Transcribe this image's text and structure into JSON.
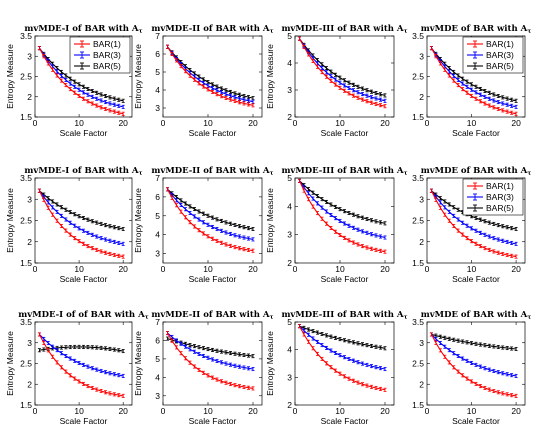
{
  "series_names": [
    "BAR(1)",
    "BAR(3)",
    "BAR(5)"
  ],
  "colors": [
    "#ff0000",
    "#0000ff",
    "#000000"
  ],
  "chart_data": [
    {
      "type": "line",
      "title": "mvMDE-I of BAR with A_{τ1}",
      "title_pre": "mvMDE-I of BAR with ",
      "title_sym": "A",
      "title_sub": "τ",
      "xlabel": "Scale Factor",
      "ylabel": "Entropy Measure",
      "xlim": [
        0,
        22
      ],
      "ylim": [
        1.5,
        3.5
      ],
      "xticks": [
        0,
        10,
        20
      ],
      "yticks": [
        1.5,
        2,
        2.5,
        3,
        3.5
      ],
      "legend": "top-right",
      "x_start": 1,
      "x_end": 20,
      "series": [
        {
          "name": "BAR(1)",
          "start": 3.2,
          "end": 1.58,
          "k": 2.2
        },
        {
          "name": "BAR(3)",
          "start": 3.2,
          "end": 1.75,
          "k": 2.0
        },
        {
          "name": "BAR(5)",
          "start": 3.2,
          "end": 1.9,
          "k": 1.8
        }
      ]
    },
    {
      "type": "line",
      "title": "mvMDE-II of BAR with A_{τ1}",
      "title_pre": "mvMDE-II of BAR with ",
      "title_sym": "A",
      "title_sub": "τ",
      "xlabel": "Scale Factor",
      "ylabel": "Entropy Measure",
      "xlim": [
        0,
        22
      ],
      "ylim": [
        2.5,
        7
      ],
      "xticks": [
        0,
        10,
        20
      ],
      "yticks": [
        3,
        4,
        5,
        6,
        7
      ],
      "legend": "none",
      "x_start": 1,
      "x_end": 20,
      "series": [
        {
          "name": "BAR(1)",
          "start": 6.4,
          "end": 3.15,
          "k": 2.2
        },
        {
          "name": "BAR(3)",
          "start": 6.4,
          "end": 3.35,
          "k": 2.0
        },
        {
          "name": "BAR(5)",
          "start": 6.4,
          "end": 3.55,
          "k": 1.8
        }
      ]
    },
    {
      "type": "line",
      "title": "mvMDE-III of BAR with A_{τ1}",
      "title_pre": "mvMDE-III of BAR with ",
      "title_sym": "A",
      "title_sub": "τ",
      "xlabel": "Scale Factor",
      "ylabel": "Entropy Measure",
      "xlim": [
        0,
        22
      ],
      "ylim": [
        2,
        5
      ],
      "xticks": [
        0,
        10,
        20
      ],
      "yticks": [
        2,
        3,
        4,
        5
      ],
      "legend": "none",
      "x_start": 1,
      "x_end": 20,
      "series": [
        {
          "name": "BAR(1)",
          "start": 4.9,
          "end": 2.4,
          "k": 2.2
        },
        {
          "name": "BAR(3)",
          "start": 4.9,
          "end": 2.6,
          "k": 2.0
        },
        {
          "name": "BAR(5)",
          "start": 4.9,
          "end": 2.8,
          "k": 1.8
        }
      ]
    },
    {
      "type": "line",
      "title": "mvMDE of BAR with A_{τ1}",
      "title_pre": "mvMDE of BAR with ",
      "title_sym": "A",
      "title_sub": "τ",
      "xlabel": "Scale Factor",
      "ylabel": "",
      "xlim": [
        0,
        22
      ],
      "ylim": [
        1.5,
        3.5
      ],
      "xticks": [
        0,
        10,
        20
      ],
      "yticks": [
        1.5,
        2,
        2.5,
        3,
        3.5
      ],
      "legend": "top-right",
      "x_start": 1,
      "x_end": 20,
      "series": [
        {
          "name": "BAR(1)",
          "start": 3.2,
          "end": 1.58,
          "k": 2.2
        },
        {
          "name": "BAR(3)",
          "start": 3.2,
          "end": 1.75,
          "k": 2.0
        },
        {
          "name": "BAR(5)",
          "start": 3.2,
          "end": 1.9,
          "k": 1.8
        }
      ]
    },
    {
      "type": "line",
      "title": "mvMDE-I of BAR with A_{τ2}",
      "title_pre": "mvMDE-I of BAR with ",
      "title_sym": "A",
      "title_sub": "τ",
      "xlabel": "Scale Factor",
      "ylabel": "Entropy Measure",
      "xlim": [
        0,
        22
      ],
      "ylim": [
        1.5,
        3.5
      ],
      "xticks": [
        0,
        10,
        20
      ],
      "yticks": [
        1.5,
        2,
        2.5,
        3,
        3.5
      ],
      "legend": "none",
      "x_start": 1,
      "x_end": 20,
      "series": [
        {
          "name": "BAR(1)",
          "start": 3.2,
          "end": 1.65,
          "k": 2.6
        },
        {
          "name": "BAR(3)",
          "start": 3.2,
          "end": 1.95,
          "k": 2.0
        },
        {
          "name": "BAR(5)",
          "start": 3.2,
          "end": 2.3,
          "k": 1.6
        }
      ]
    },
    {
      "type": "line",
      "title": "mvMDE-II of BAR with A_{τ2}",
      "title_pre": "mvMDE-II of BAR with ",
      "title_sym": "A",
      "title_sub": "τ",
      "xlabel": "Scale Factor",
      "ylabel": "Entropy Measure",
      "xlim": [
        0,
        22
      ],
      "ylim": [
        2.5,
        7
      ],
      "xticks": [
        0,
        10,
        20
      ],
      "yticks": [
        3,
        4,
        5,
        6,
        7
      ],
      "legend": "none",
      "x_start": 1,
      "x_end": 20,
      "series": [
        {
          "name": "BAR(1)",
          "start": 6.4,
          "end": 3.15,
          "k": 2.6
        },
        {
          "name": "BAR(3)",
          "start": 6.4,
          "end": 3.75,
          "k": 2.0
        },
        {
          "name": "BAR(5)",
          "start": 6.4,
          "end": 4.3,
          "k": 1.6
        }
      ]
    },
    {
      "type": "line",
      "title": "mvMDE-III of BAR with A_{τ2}",
      "title_pre": "mvMDE-III of BAR with ",
      "title_sym": "A",
      "title_sub": "τ",
      "xlabel": "Scale Factor",
      "ylabel": "Entropy Measure",
      "xlim": [
        0,
        22
      ],
      "ylim": [
        2,
        5
      ],
      "xticks": [
        0,
        10,
        20
      ],
      "yticks": [
        2,
        3,
        4,
        5
      ],
      "legend": "none",
      "x_start": 1,
      "x_end": 20,
      "series": [
        {
          "name": "BAR(1)",
          "start": 4.9,
          "end": 2.4,
          "k": 2.6
        },
        {
          "name": "BAR(3)",
          "start": 4.9,
          "end": 2.9,
          "k": 2.0
        },
        {
          "name": "BAR(5)",
          "start": 4.9,
          "end": 3.4,
          "k": 1.6
        }
      ]
    },
    {
      "type": "line",
      "title": "mvMDE of BAR with A_{τ2}",
      "title_pre": "mvMDE of BAR with ",
      "title_sym": "A",
      "title_sub": "τ",
      "xlabel": "Scale Factor",
      "ylabel": "",
      "xlim": [
        0,
        22
      ],
      "ylim": [
        1.5,
        3.5
      ],
      "xticks": [
        0,
        10,
        20
      ],
      "yticks": [
        1.5,
        2,
        2.5,
        3,
        3.5
      ],
      "legend": "top-right",
      "x_start": 1,
      "x_end": 20,
      "series": [
        {
          "name": "BAR(1)",
          "start": 3.2,
          "end": 1.65,
          "k": 2.6
        },
        {
          "name": "BAR(3)",
          "start": 3.2,
          "end": 1.95,
          "k": 2.0
        },
        {
          "name": "BAR(5)",
          "start": 3.2,
          "end": 2.3,
          "k": 1.6
        }
      ]
    },
    {
      "type": "line",
      "title": "mvMDE-I of of BAR with A_{τ3}",
      "title_pre": "mvMDE-I of of BAR with ",
      "title_sym": "A",
      "title_sub": "τ",
      "xlabel": "Scale Factor",
      "ylabel": "Entropy Measure",
      "xlim": [
        0,
        22
      ],
      "ylim": [
        1.5,
        3.5
      ],
      "xticks": [
        0,
        10,
        20
      ],
      "yticks": [
        1.5,
        2,
        2.5,
        3,
        3.5
      ],
      "legend": "none",
      "x_start": 1,
      "x_end": 20,
      "series": [
        {
          "name": "BAR(1)",
          "start": 3.2,
          "end": 1.72,
          "k": 2.6
        },
        {
          "name": "BAR(3)",
          "start": 3.2,
          "end": 2.2,
          "k": 1.8
        },
        {
          "name": "BAR(5)",
          "start": 2.82,
          "end": 2.8,
          "mode": "bump",
          "mid": 2.9
        }
      ]
    },
    {
      "type": "line",
      "title": "mvMDE-II of BAR with A_{τ3}",
      "title_pre": "mvMDE-II of BAR with ",
      "title_sym": "A",
      "title_sub": "τ",
      "xlabel": "Scale Factor",
      "ylabel": "Entropy Measure",
      "xlim": [
        0,
        22
      ],
      "ylim": [
        2.5,
        7
      ],
      "xticks": [
        0,
        10,
        20
      ],
      "yticks": [
        3,
        4,
        5,
        6,
        7
      ],
      "legend": "none",
      "x_start": 1,
      "x_end": 20,
      "series": [
        {
          "name": "BAR(1)",
          "start": 6.4,
          "end": 3.4,
          "k": 2.6
        },
        {
          "name": "BAR(3)",
          "start": 6.4,
          "end": 4.45,
          "k": 1.8
        },
        {
          "name": "BAR(5)",
          "start": 6.1,
          "end": 5.15,
          "k": 1.0
        }
      ]
    },
    {
      "type": "line",
      "title": "mvMDE-III of BAR with A_{τ3}",
      "title_pre": "mvMDE-III of BAR with ",
      "title_sym": "A",
      "title_sub": "τ",
      "xlabel": "Scale Factor",
      "ylabel": "Entropy Measure",
      "xlim": [
        0,
        22
      ],
      "ylim": [
        2,
        5
      ],
      "xticks": [
        0,
        10,
        20
      ],
      "yticks": [
        2,
        3,
        4,
        5
      ],
      "legend": "none",
      "x_start": 1,
      "x_end": 20,
      "series": [
        {
          "name": "BAR(1)",
          "start": 4.85,
          "end": 2.55,
          "k": 2.4
        },
        {
          "name": "BAR(3)",
          "start": 4.85,
          "end": 3.3,
          "k": 1.7
        },
        {
          "name": "BAR(5)",
          "start": 4.85,
          "end": 4.05,
          "k": 0.9
        }
      ]
    },
    {
      "type": "line",
      "title": "mvMDE of BAR with A_{τ3}",
      "title_pre": "mvMDE of BAR with ",
      "title_sym": "A",
      "title_sub": "τ",
      "xlabel": "Scale Factor",
      "ylabel": "",
      "xlim": [
        0,
        22
      ],
      "ylim": [
        1.5,
        3.5
      ],
      "xticks": [
        0,
        10,
        20
      ],
      "yticks": [
        1.5,
        2,
        2.5,
        3,
        3.5
      ],
      "legend": "none",
      "x_start": 1,
      "x_end": 20,
      "series": [
        {
          "name": "BAR(1)",
          "start": 3.2,
          "end": 1.72,
          "k": 2.6
        },
        {
          "name": "BAR(3)",
          "start": 3.2,
          "end": 2.2,
          "k": 1.8
        },
        {
          "name": "BAR(5)",
          "start": 3.2,
          "end": 2.85,
          "k": 1.0
        }
      ]
    }
  ]
}
